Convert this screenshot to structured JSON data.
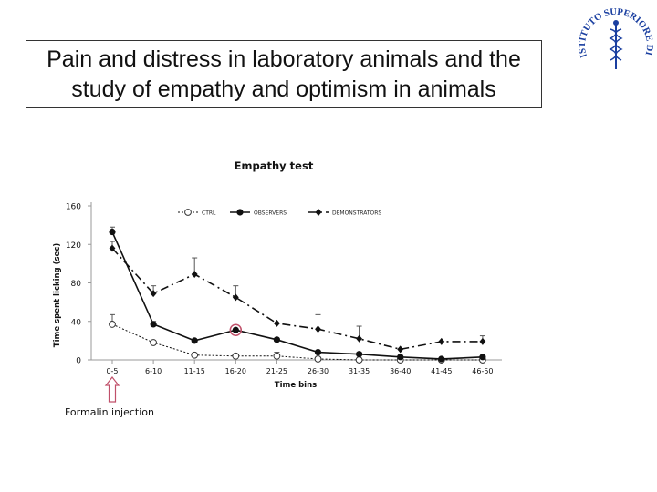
{
  "slide": {
    "title": "Pain and distress in laboratory animals and the study of empathy and optimism in animals"
  },
  "logo": {
    "text": "ISTITUTO SUPERIORE DI SANITÀ",
    "icon": "caduceus-seal-icon",
    "color": "#1a3fa0"
  },
  "annotation": {
    "label": "Formalin injection",
    "icon": "arrow-up-icon",
    "color": "#c0506a"
  },
  "chart_data": {
    "type": "line",
    "title": "Empathy test",
    "xlabel": "Time bins",
    "ylabel": "Time spent licking (sec)",
    "categories": [
      "0-5",
      "6-10",
      "11-15",
      "16-20",
      "21-25",
      "26-30",
      "31-35",
      "36-40",
      "41-45",
      "46-50"
    ],
    "yticks": [
      0,
      40,
      80,
      120,
      160
    ],
    "ylim": [
      0,
      160
    ],
    "legend_position": "top",
    "series": [
      {
        "name": "CTRL",
        "style": "dotted",
        "marker": "open-circle",
        "values": [
          37,
          18,
          5,
          4,
          4,
          1,
          0,
          0,
          0,
          0
        ],
        "errors": [
          10,
          0,
          0,
          0,
          4,
          0,
          0,
          0,
          0,
          0
        ]
      },
      {
        "name": "OBSERVERS",
        "style": "solid",
        "marker": "filled-circle",
        "values": [
          133,
          37,
          20,
          31,
          21,
          8,
          6,
          3,
          1,
          3
        ],
        "errors": [
          5,
          3,
          0,
          0,
          0,
          0,
          0,
          0,
          0,
          0
        ]
      },
      {
        "name": "DEMONSTRATORS",
        "style": "dash-dot",
        "marker": "filled-diamond",
        "values": [
          116,
          69,
          89,
          65,
          38,
          32,
          22,
          11,
          19,
          19
        ],
        "errors": [
          7,
          8,
          17,
          12,
          0,
          15,
          13,
          0,
          0,
          6
        ]
      }
    ],
    "highlight": {
      "series": "OBSERVERS",
      "category": "16-20",
      "color": "#c0506a"
    }
  }
}
